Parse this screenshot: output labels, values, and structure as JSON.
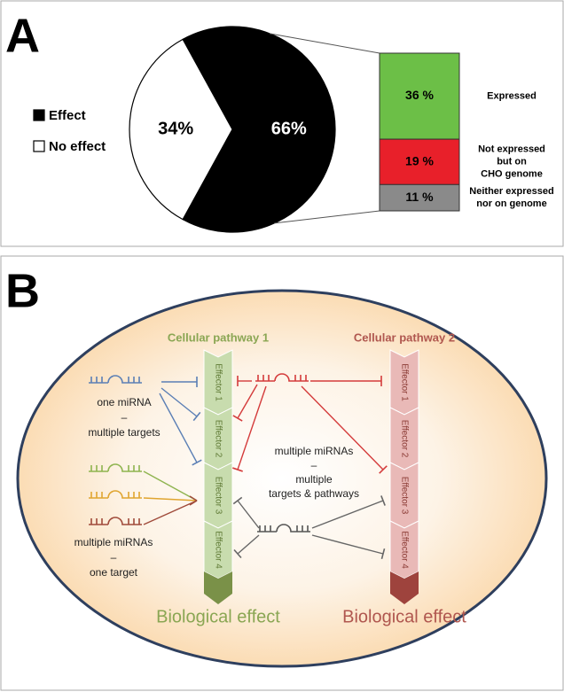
{
  "chart_data": [
    {
      "type": "pie",
      "panel_label": "A",
      "categories": [
        "Effect",
        "No effect"
      ],
      "values": [
        66,
        34
      ],
      "value_labels": [
        "66%",
        "34%"
      ],
      "colors": [
        "#000000",
        "#ffffff"
      ]
    },
    {
      "type": "bar",
      "stacked": true,
      "categories": [
        [
          "Expressed"
        ],
        [
          "Not expressed",
          "but on",
          "CHO genome"
        ],
        [
          "Neither expressed",
          "nor on genome"
        ]
      ],
      "values": [
        36,
        19,
        11
      ],
      "value_labels": [
        "36 %",
        "19 %",
        "11 %"
      ],
      "colors": [
        "#6cbf47",
        "#e8202a",
        "#8a8a8a"
      ]
    }
  ],
  "panel_b": {
    "panel_label": "B",
    "pathways": [
      {
        "title": "Cellular pathway 1",
        "effectors": [
          "Effector 1",
          "Effector 2",
          "Effector 3",
          "Effector 4"
        ],
        "outcome": "Biological effect"
      },
      {
        "title": "Cellular pathway 2",
        "effectors": [
          "Effector 1",
          "Effector 2",
          "Effector 3",
          "Effector 4"
        ],
        "outcome": "Biological effect"
      }
    ],
    "annotations": {
      "one_to_many": [
        "one miRNA",
        "–",
        "multiple targets"
      ],
      "many_to_one": [
        "multiple miRNAs",
        "–",
        "one target"
      ],
      "many_to_many": [
        "multiple miRNAs",
        "–",
        "multiple",
        "targets & pathways"
      ]
    }
  }
}
